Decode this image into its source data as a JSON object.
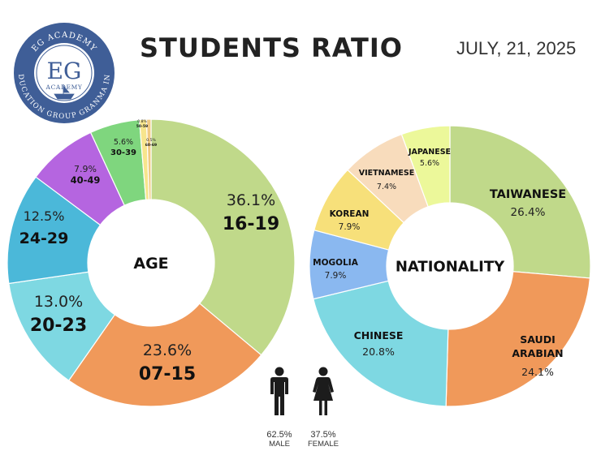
{
  "header": {
    "title": "STUDENTS RATIO",
    "date": "JULY, 21, 2025"
  },
  "logo": {
    "top_text": "EG ACADEMY",
    "monogram": "EG",
    "subtitle": "ACADEMY",
    "bottom_text": "EDUCATION GROUP GRANMA INC",
    "color": "#3f5e97"
  },
  "chart_data": [
    {
      "type": "pie",
      "title": "AGE",
      "categories": [
        "16-19",
        "07-15",
        "20-23",
        "24-29",
        "40-49",
        "30-39",
        "50-59",
        "60-69"
      ],
      "values": [
        36.1,
        23.6,
        13.0,
        12.5,
        7.9,
        5.6,
        0.8,
        0.5
      ],
      "percent_labels": [
        "36.1%",
        "23.6%",
        "13.0%",
        "12.5%",
        "7.9%",
        "5.6%",
        "0.8%",
        "0.5%"
      ],
      "colors": [
        "#c0d98a",
        "#f0995a",
        "#7ed8e2",
        "#4bb8d9",
        "#b565e0",
        "#7fd67e",
        "#f7e58d",
        "#f1c981"
      ]
    },
    {
      "type": "pie",
      "title": "NATIONALITY",
      "categories": [
        "TAIWANESE",
        "SAUDI ARABIAN",
        "CHINESE",
        "MOGOLIA",
        "KOREAN",
        "VIETNAMESE",
        "JAPANESE"
      ],
      "values": [
        26.4,
        24.1,
        20.8,
        7.9,
        7.9,
        7.4,
        5.6
      ],
      "percent_labels": [
        "26.4%",
        "24.1%",
        "20.8%",
        "7.9%",
        "7.9%",
        "7.4%",
        "5.6%"
      ],
      "colors": [
        "#c0d98a",
        "#f0995a",
        "#7ed8e2",
        "#8ab8f0",
        "#f7e07a",
        "#f8dcbc",
        "#ecf89a"
      ]
    }
  ],
  "gender": [
    {
      "label": "MALE",
      "percent": "62.5%",
      "color": "#1c1c1c"
    },
    {
      "label": "FEMALE",
      "percent": "37.5%",
      "color": "#1c1c1c"
    }
  ]
}
